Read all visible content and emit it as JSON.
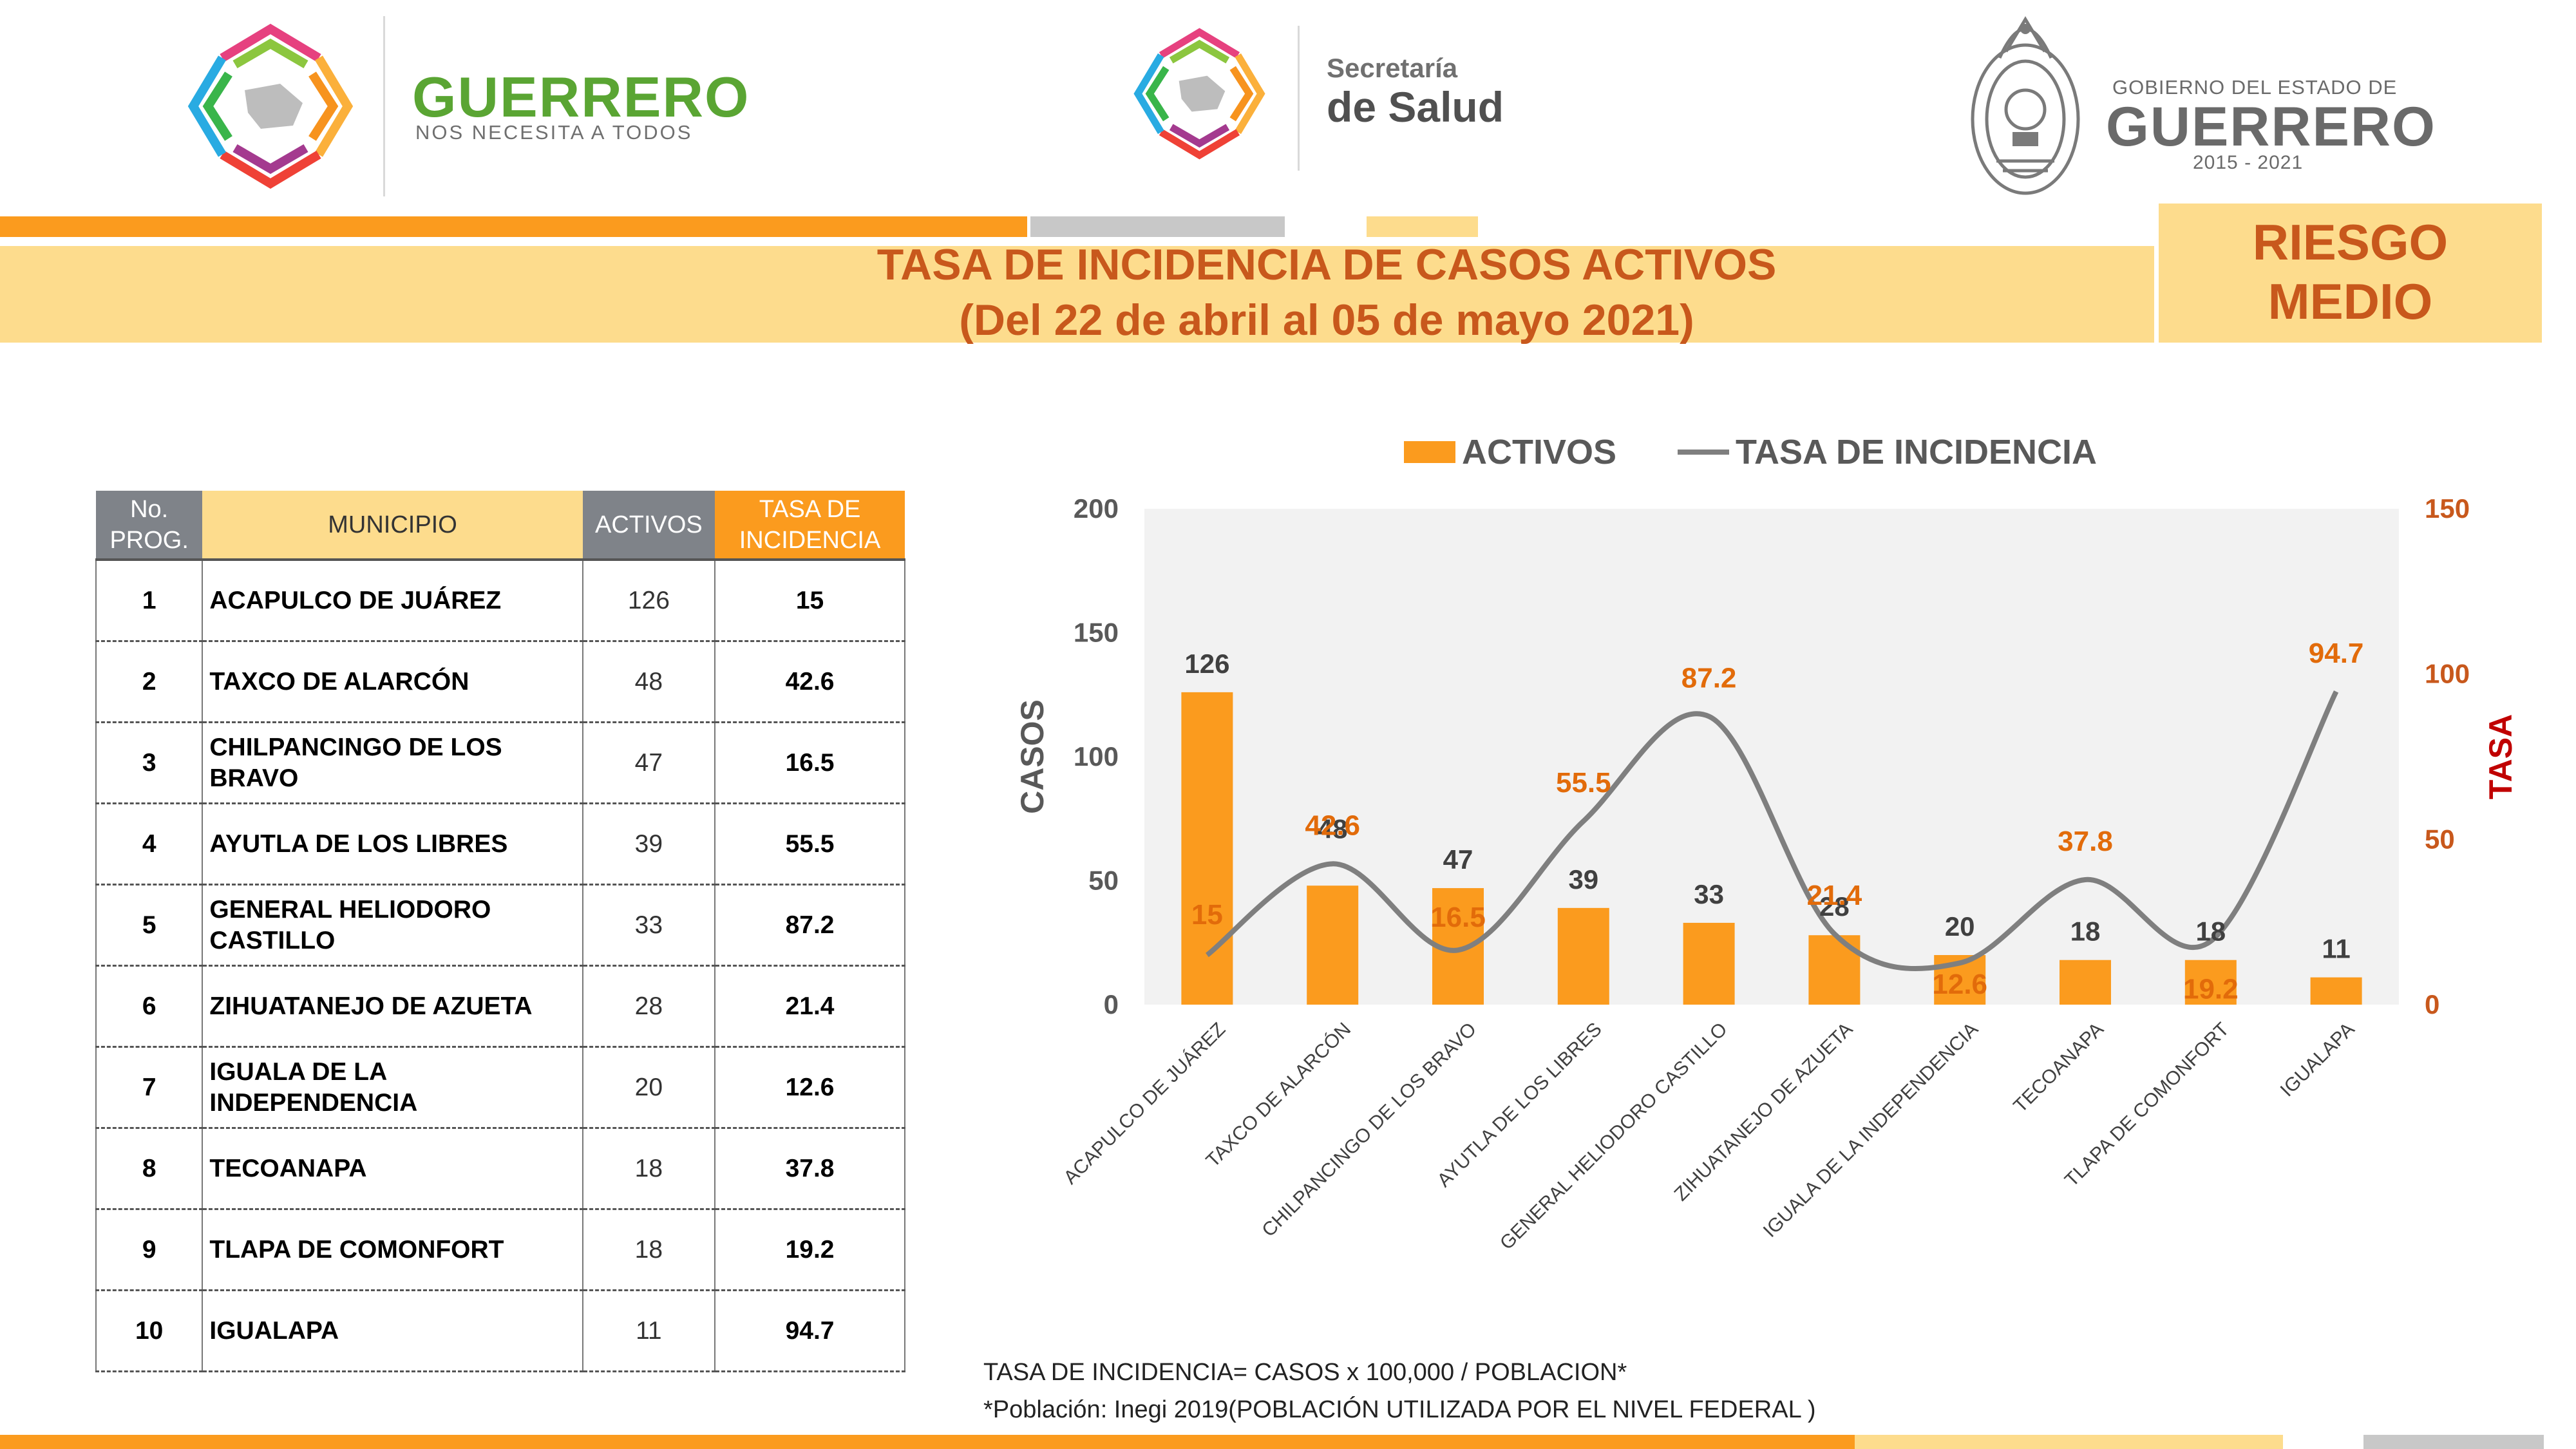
{
  "header": {
    "guerrero_logo_title": "GUERRERO",
    "guerrero_logo_sub": "NOS NECESITA A TODOS",
    "salud_line1": "Secretaría",
    "salud_line2": "de Salud",
    "gobierno_line1": "GOBIERNO DEL ESTADO DE",
    "gobierno_line2": "GUERRERO",
    "gobierno_line3": "2015 - 2021"
  },
  "title": {
    "line1": "TASA DE INCIDENCIA DE CASOS ACTIVOS",
    "line2": "(Del 22 de abril al 05 de mayo 2021)"
  },
  "risk": {
    "line1": "RIESGO",
    "line2": "MEDIO"
  },
  "colors": {
    "orange": "#fb9b1e",
    "band": "#fddc8d",
    "title": "#c8581c",
    "gray_line": "#7f7f7f",
    "header_gray": "#7f8389"
  },
  "table": {
    "headers": {
      "no": "No. PROG.",
      "municipio": "MUNICIPIO",
      "activos": "ACTIVOS",
      "tasa": "TASA DE INCIDENCIA"
    },
    "rows": [
      {
        "no": "1",
        "municipio": "ACAPULCO DE JUÁREZ",
        "activos": "126",
        "tasa": "15"
      },
      {
        "no": "2",
        "municipio": "TAXCO DE ALARCÓN",
        "activos": "48",
        "tasa": "42.6"
      },
      {
        "no": "3",
        "municipio": "CHILPANCINGO DE LOS BRAVO",
        "activos": "47",
        "tasa": "16.5"
      },
      {
        "no": "4",
        "municipio": "AYUTLA DE LOS LIBRES",
        "activos": "39",
        "tasa": "55.5"
      },
      {
        "no": "5",
        "municipio": "GENERAL HELIODORO CASTILLO",
        "activos": "33",
        "tasa": "87.2"
      },
      {
        "no": "6",
        "municipio": "ZIHUATANEJO DE AZUETA",
        "activos": "28",
        "tasa": "21.4"
      },
      {
        "no": "7",
        "municipio": "IGUALA DE LA INDEPENDENCIA",
        "activos": "20",
        "tasa": "12.6"
      },
      {
        "no": "8",
        "municipio": "TECOANAPA",
        "activos": "18",
        "tasa": "37.8"
      },
      {
        "no": "9",
        "municipio": "TLAPA DE COMONFORT",
        "activos": "18",
        "tasa": "19.2"
      },
      {
        "no": "10",
        "municipio": "IGUALAPA",
        "activos": "11",
        "tasa": "94.7"
      }
    ]
  },
  "chart_data": {
    "type": "bar",
    "categories": [
      "ACAPULCO DE JUÁREZ",
      "TAXCO DE ALARCÓN",
      "CHILPANCINGO DE LOS BRAVO",
      "AYUTLA DE LOS LIBRES",
      "GENERAL HELIODORO CASTILLO",
      "ZIHUATANEJO DE AZUETA",
      "IGUALA DE LA INDEPENDENCIA",
      "TECOANAPA",
      "TLAPA DE COMONFORT",
      "IGUALAPA"
    ],
    "series": [
      {
        "name": "ACTIVOS",
        "type": "bar",
        "axis": "left",
        "values": [
          126,
          48,
          47,
          39,
          33,
          28,
          20,
          18,
          18,
          11
        ]
      },
      {
        "name": "TASA DE INCIDENCIA",
        "type": "line",
        "axis": "right",
        "values": [
          15,
          42.6,
          16.5,
          55.5,
          87.2,
          21.4,
          12.6,
          37.8,
          19.2,
          94.7
        ]
      }
    ],
    "ylabel": "CASOS",
    "y2label": "TASA",
    "ylim": [
      0,
      200
    ],
    "y2lim": [
      0,
      150
    ],
    "yticks": [
      0,
      50,
      100,
      150,
      200
    ],
    "y2ticks": [
      0,
      50,
      100,
      150
    ],
    "legend_position": "top"
  },
  "footer": {
    "note1": "TASA DE INCIDENCIA= CASOS x 100,000 / POBLACION*",
    "note2": "*Población: Inegi 2019(POBLACIÓN UTILIZADA POR EL NIVEL FEDERAL )"
  }
}
